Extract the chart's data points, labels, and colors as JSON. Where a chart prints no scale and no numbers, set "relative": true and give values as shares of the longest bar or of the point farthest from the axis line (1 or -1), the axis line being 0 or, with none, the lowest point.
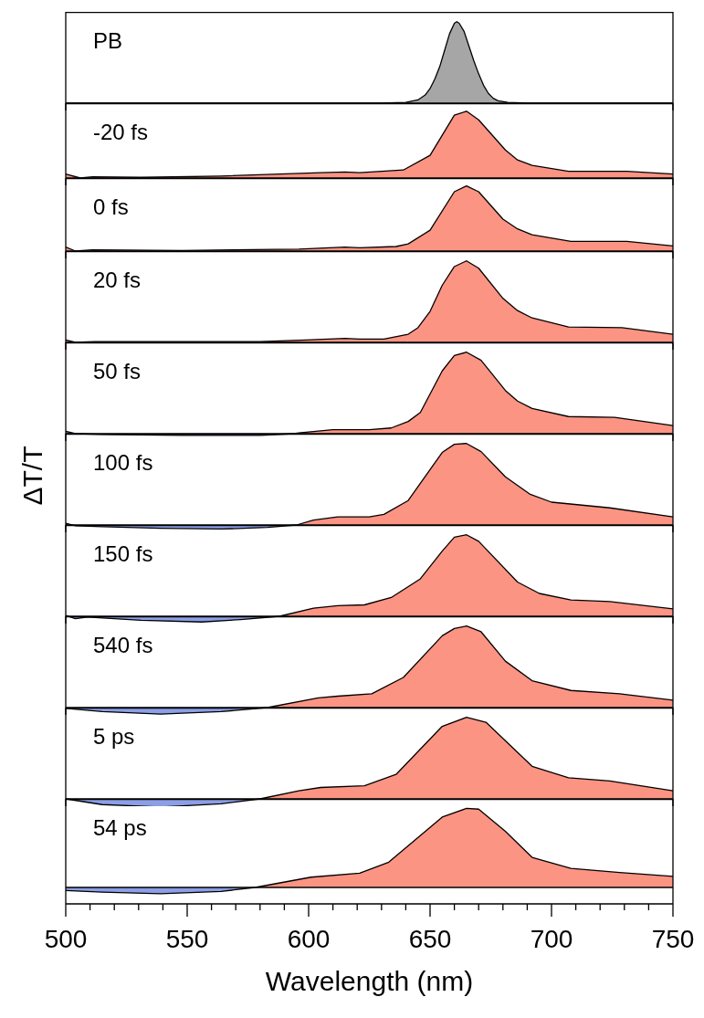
{
  "chart_data": [
    {
      "type": "area",
      "title": "PB",
      "relative": true,
      "xlim": [
        500,
        750
      ],
      "tick_labels": false,
      "series": [
        {
          "color": "#a6a6a6",
          "x": [
            500,
            600,
            630,
            640,
            645,
            648,
            650,
            652,
            654,
            656,
            658,
            660,
            661,
            662,
            664,
            666,
            668,
            670,
            672,
            674,
            676,
            678,
            682,
            690,
            750
          ],
          "values": [
            0,
            0,
            0,
            0.01,
            0.04,
            0.1,
            0.18,
            0.3,
            0.45,
            0.65,
            0.85,
            0.98,
            1,
            0.98,
            0.88,
            0.7,
            0.52,
            0.36,
            0.22,
            0.12,
            0.06,
            0.03,
            0.01,
            0,
            0
          ]
        }
      ]
    },
    {
      "type": "area",
      "title": "-20 fs",
      "relative": true,
      "xlim": [
        500,
        750
      ],
      "tick_labels": false,
      "series": [
        {
          "color": "#fc9483",
          "x": [
            500,
            506,
            511,
            531,
            564,
            605,
            615,
            621,
            639,
            650,
            660,
            665,
            670,
            681,
            686,
            692,
            707,
            731,
            750
          ],
          "values": [
            0.06,
            0,
            0.02,
            0.01,
            0.03,
            0.08,
            0.09,
            0.08,
            0.12,
            0.34,
            0.94,
            1,
            0.87,
            0.42,
            0.27,
            0.19,
            0.1,
            0.1,
            0.06
          ]
        }
      ]
    },
    {
      "type": "area",
      "title": "0 fs",
      "relative": true,
      "xlim": [
        500,
        750
      ],
      "tick_labels": false,
      "series": [
        {
          "color": "#fc9483",
          "x": [
            500,
            504,
            511,
            548,
            596,
            615,
            621,
            636,
            641,
            650,
            660,
            665,
            670,
            680,
            686,
            692,
            708,
            731,
            750
          ],
          "values": [
            0.06,
            0,
            0.02,
            0.01,
            0.03,
            0.06,
            0.05,
            0.07,
            0.11,
            0.32,
            0.91,
            1,
            0.91,
            0.49,
            0.34,
            0.25,
            0.15,
            0.15,
            0.08
          ]
        }
      ]
    },
    {
      "type": "area",
      "title": "20 fs",
      "relative": true,
      "xlim": [
        500,
        750
      ],
      "tick_labels": false,
      "series": [
        {
          "color": "#fc9483",
          "x": [
            500,
            504,
            512,
            580,
            599,
            615,
            621,
            631,
            641,
            645,
            650,
            655,
            660,
            665,
            670,
            680,
            686,
            692,
            707,
            729,
            750
          ],
          "values": [
            0.03,
            0,
            0.01,
            0.01,
            0.03,
            0.05,
            0.04,
            0.04,
            0.1,
            0.18,
            0.38,
            0.7,
            0.93,
            1,
            0.91,
            0.54,
            0.39,
            0.3,
            0.19,
            0.18,
            0.1
          ]
        }
      ]
    },
    {
      "type": "area",
      "title": "50 fs",
      "relative": true,
      "xlim": [
        500,
        750
      ],
      "tick_labels": false,
      "series": [
        {
          "color": "#8c9ee6",
          "x": [
            500,
            504,
            515,
            548,
            580,
            594
          ],
          "values": [
            0.03,
            0,
            -0.01,
            -0.02,
            -0.02,
            0
          ]
        },
        {
          "color": "#fc9483",
          "x": [
            594,
            596,
            610,
            625,
            634,
            641,
            646,
            655,
            660,
            665,
            671,
            681,
            686,
            692,
            707,
            726,
            750
          ],
          "values": [
            0,
            0.01,
            0.05,
            0.05,
            0.07,
            0.15,
            0.26,
            0.77,
            0.96,
            1,
            0.9,
            0.53,
            0.4,
            0.31,
            0.21,
            0.2,
            0.1
          ]
        }
      ]
    },
    {
      "type": "area",
      "title": "100 fs",
      "ylabel": "ΔT/T",
      "relative": true,
      "xlim": [
        500,
        750
      ],
      "tick_labels": false,
      "series": [
        {
          "color": "#8c9ee6",
          "x": [
            500,
            504,
            515,
            539,
            564,
            583,
            595
          ],
          "values": [
            0.02,
            -0.01,
            -0.02,
            -0.04,
            -0.05,
            -0.03,
            0
          ]
        },
        {
          "color": "#fc9483",
          "x": [
            595,
            602,
            612,
            625,
            631,
            641,
            655,
            660,
            665,
            671,
            681,
            691,
            700,
            724,
            750
          ],
          "values": [
            0,
            0.06,
            0.1,
            0.1,
            0.13,
            0.3,
            0.89,
            0.99,
            1,
            0.9,
            0.59,
            0.38,
            0.28,
            0.21,
            0.1
          ]
        }
      ]
    },
    {
      "type": "area",
      "title": "150 fs",
      "relative": true,
      "xlim": [
        500,
        750
      ],
      "tick_labels": false,
      "series": [
        {
          "color": "#8c9ee6",
          "x": [
            500,
            504,
            509,
            531,
            556,
            572,
            588
          ],
          "values": [
            0.01,
            -0.03,
            -0.01,
            -0.05,
            -0.07,
            -0.04,
            0
          ]
        },
        {
          "color": "#fc9483",
          "x": [
            588,
            602,
            612,
            623,
            634,
            646,
            655,
            660,
            665,
            670,
            686,
            695,
            708,
            724,
            750
          ],
          "values": [
            0,
            0.1,
            0.13,
            0.14,
            0.23,
            0.46,
            0.8,
            0.97,
            1,
            0.92,
            0.42,
            0.28,
            0.2,
            0.18,
            0.09
          ]
        }
      ]
    },
    {
      "type": "area",
      "title": "540 fs",
      "relative": true,
      "xlim": [
        500,
        750
      ],
      "tick_labels": false,
      "series": [
        {
          "color": "#8c9ee6",
          "x": [
            500,
            515,
            539,
            564,
            583
          ],
          "values": [
            -0.01,
            -0.05,
            -0.08,
            -0.05,
            0
          ]
        },
        {
          "color": "#fc9483",
          "x": [
            583,
            604,
            612,
            626,
            639,
            655,
            660,
            665,
            671,
            681,
            692,
            708,
            728,
            750
          ],
          "values": [
            0,
            0.12,
            0.14,
            0.17,
            0.37,
            0.88,
            0.97,
            1,
            0.93,
            0.57,
            0.33,
            0.21,
            0.17,
            0.09
          ]
        }
      ]
    },
    {
      "type": "area",
      "title": "5 ps",
      "relative": true,
      "xlim": [
        500,
        750
      ],
      "tick_labels": false,
      "series": [
        {
          "color": "#8c9ee6",
          "x": [
            500,
            515,
            539,
            564,
            580
          ],
          "values": [
            0,
            -0.07,
            -0.1,
            -0.06,
            0
          ]
        },
        {
          "color": "#fc9483",
          "x": [
            580,
            596,
            605,
            623,
            636,
            655,
            665,
            673,
            692,
            707,
            724,
            750
          ],
          "values": [
            0,
            0.1,
            0.14,
            0.16,
            0.3,
            0.89,
            1,
            0.94,
            0.4,
            0.26,
            0.22,
            0.1
          ]
        }
      ]
    },
    {
      "type": "area",
      "title": "54 ps",
      "xlabel": "Wavelength (nm)",
      "relative": true,
      "xlim": [
        500,
        750
      ],
      "tick_labels": "x",
      "xticks": [
        500,
        {
          "value": 510,
          "label": null
        },
        {
          "value": 520,
          "label": null
        },
        {
          "value": 530,
          "label": null
        },
        {
          "value": 540,
          "label": null
        },
        550,
        {
          "value": 560,
          "label": null
        },
        {
          "value": 570,
          "label": null
        },
        {
          "value": 580,
          "label": null
        },
        {
          "value": 590,
          "label": null
        },
        600,
        {
          "value": 610,
          "label": null
        },
        {
          "value": 620,
          "label": null
        },
        {
          "value": 630,
          "label": null
        },
        {
          "value": 640,
          "label": null
        },
        650,
        {
          "value": 660,
          "label": null
        },
        {
          "value": 670,
          "label": null
        },
        {
          "value": 680,
          "label": null
        },
        {
          "value": 690,
          "label": null
        },
        700,
        {
          "value": 710,
          "label": null
        },
        {
          "value": 720,
          "label": null
        },
        {
          "value": 730,
          "label": null
        },
        {
          "value": 740,
          "label": null
        },
        750
      ],
      "series": [
        {
          "color": "#8c9ee6",
          "x": [
            500,
            515,
            539,
            564,
            578
          ],
          "values": [
            -0.04,
            -0.06,
            -0.08,
            -0.05,
            0
          ]
        },
        {
          "color": "#fc9483",
          "x": [
            578,
            601,
            621,
            633,
            655,
            665,
            670,
            681,
            692,
            708,
            728,
            750
          ],
          "values": [
            0,
            0.13,
            0.18,
            0.32,
            0.89,
            1,
            0.99,
            0.71,
            0.38,
            0.24,
            0.19,
            0.14
          ]
        }
      ]
    }
  ]
}
